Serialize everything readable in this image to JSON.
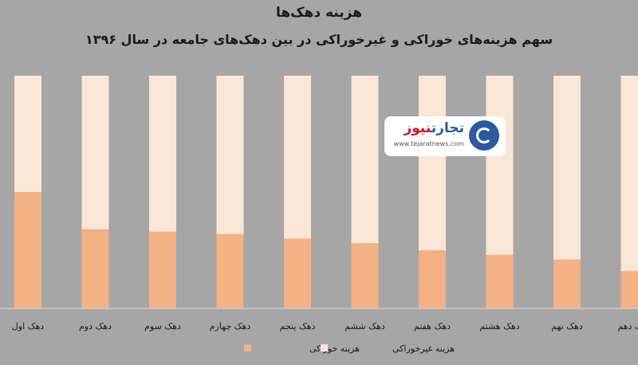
{
  "chart_data": {
    "type": "bar",
    "stacked": true,
    "percent_stacked": true,
    "title": "هزینه دهک‌ها",
    "subtitle": "سهم هزینه‌های خوراکی و غیرخوراکی در بین دهک‌های جامعه در سال ۱۳۹۶",
    "categories": [
      "دهک اول",
      "دهک دوم",
      "دهک سوم",
      "دهک چهارم",
      "دهک پنجم",
      "دهک ششم",
      "دهک هفتم",
      "دهک هشتم",
      "دهک نهم",
      "دهک دهم"
    ],
    "series": [
      {
        "name": "هزینه خوراکی",
        "values": [
          50,
          34,
          33,
          32,
          30,
          28,
          25,
          23,
          21,
          16
        ],
        "color": "#f4b183"
      },
      {
        "name": "هزینه غیرخوراکی",
        "values": [
          50,
          66,
          67,
          68,
          70,
          72,
          75,
          77,
          79,
          84
        ],
        "color": "#fbe5d6"
      }
    ],
    "ylim": [
      0,
      100
    ],
    "grid": false,
    "legend_position": "bottom"
  },
  "watermark": {
    "brand_part_a": "تجارت",
    "brand_part_b": "نیوز",
    "url": "www.tejaratnews.com",
    "icon": "tejaratnews-logo-icon"
  },
  "colors": {
    "background": "#a6a6a6",
    "axis_line": "#d9d9d9",
    "text": "#1a1a1a"
  }
}
